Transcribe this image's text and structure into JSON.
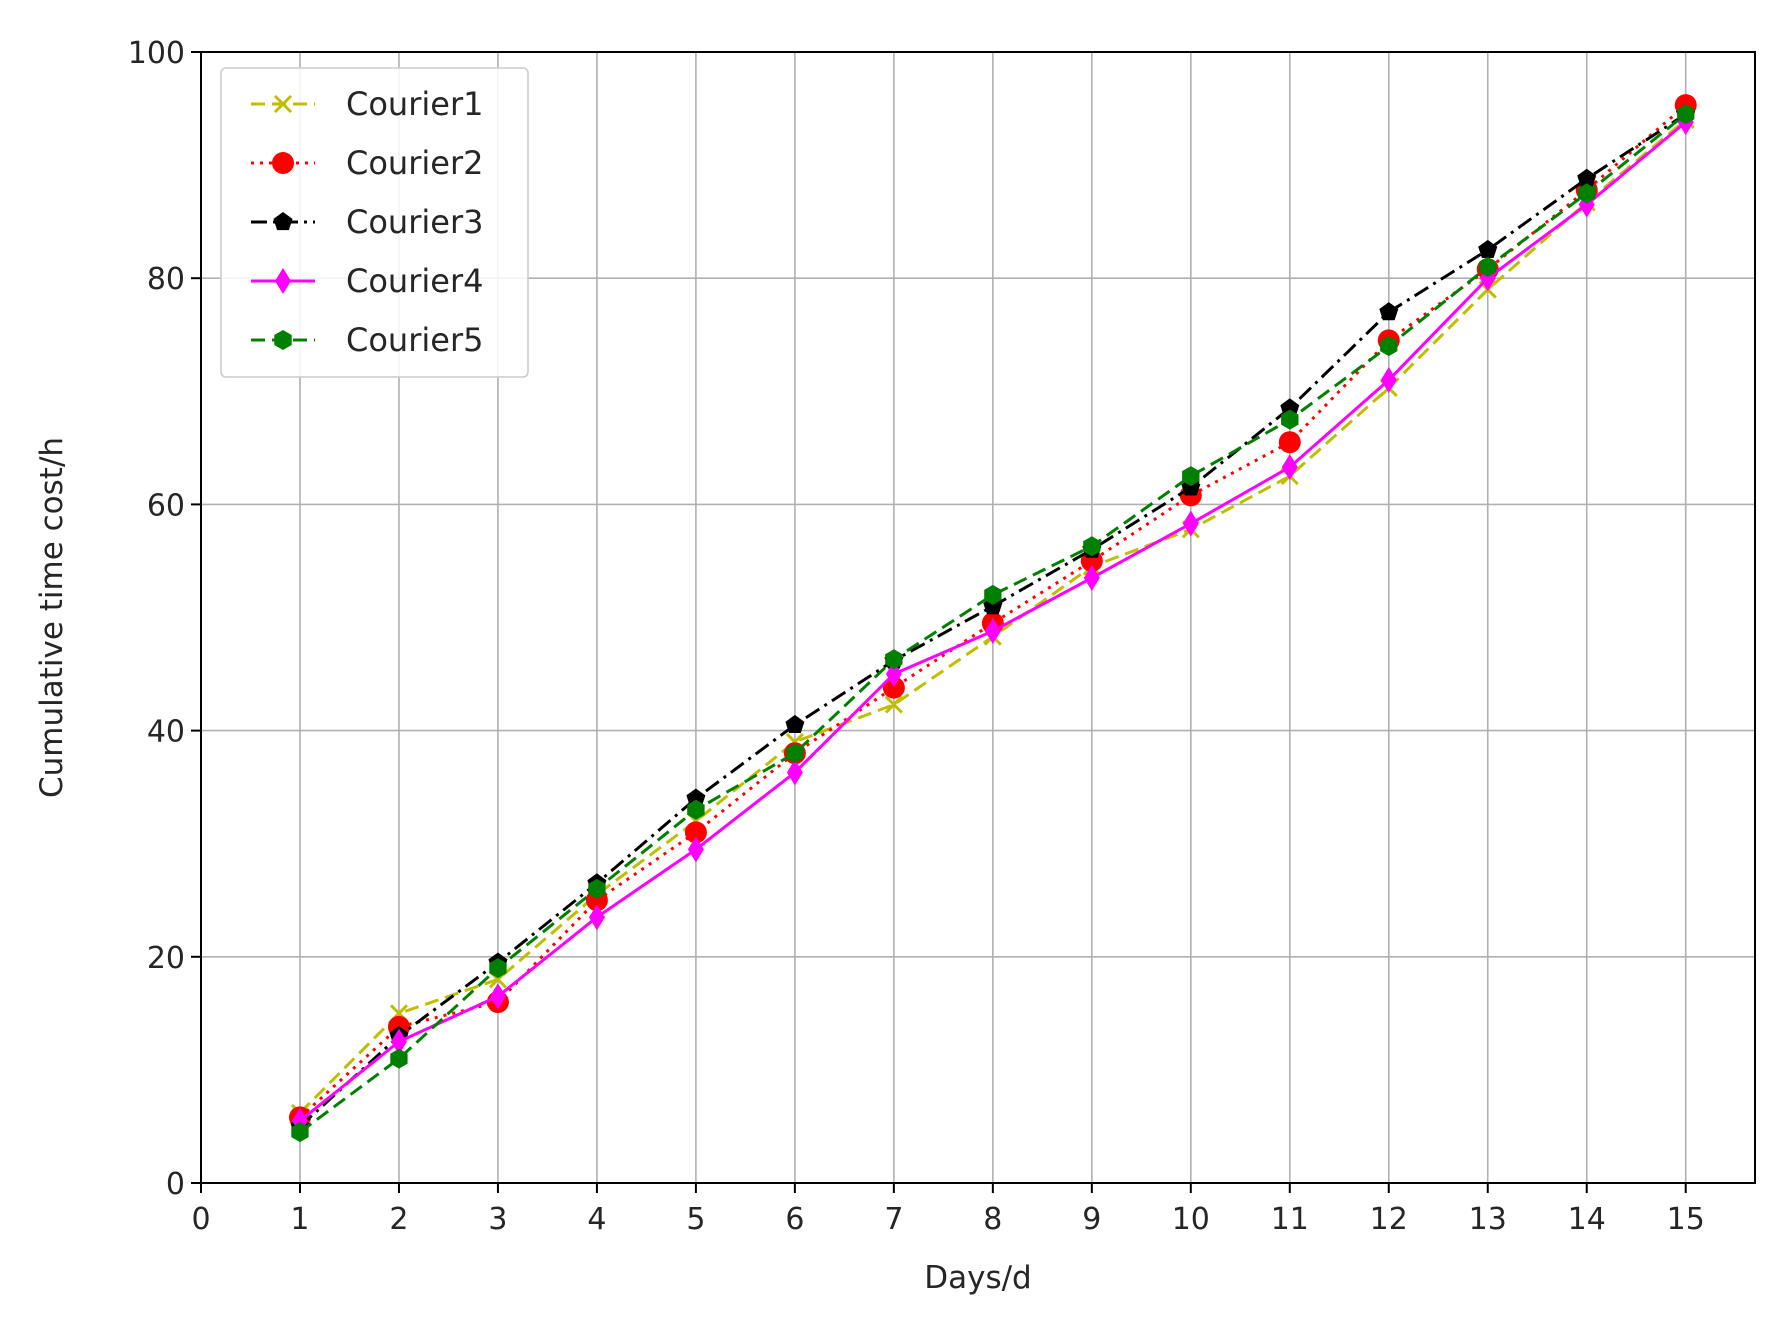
{
  "chart_data": {
    "type": "line",
    "title": "",
    "xlabel": "Days/d",
    "ylabel": "Cumulative time cost/h",
    "xlim": [
      0,
      15.7
    ],
    "ylim": [
      0,
      100
    ],
    "x": [
      1,
      2,
      3,
      4,
      5,
      6,
      7,
      8,
      9,
      10,
      11,
      12,
      13,
      14,
      15
    ],
    "xticks": [
      "0",
      "1",
      "2",
      "3",
      "4",
      "5",
      "6",
      "7",
      "8",
      "9",
      "10",
      "11",
      "12",
      "13",
      "14",
      "15"
    ],
    "yticks": [
      "0",
      "20",
      "40",
      "60",
      "80",
      "100"
    ],
    "grid": true,
    "legend_position": "top-left",
    "series": [
      {
        "name": "Courier1",
        "color": "#bfbf00",
        "linestyle": "dashed",
        "marker": "x",
        "values": [
          6.2,
          15.0,
          18.0,
          25.5,
          32.0,
          39.0,
          42.3,
          48.3,
          54.5,
          57.8,
          62.5,
          70.3,
          79.0,
          86.7,
          94.0
        ]
      },
      {
        "name": "Courier2",
        "color": "#ff0000",
        "linestyle": "dotted",
        "marker": "circle",
        "values": [
          5.8,
          13.8,
          16.0,
          25.0,
          31.0,
          38.0,
          43.8,
          49.5,
          55.0,
          60.8,
          65.5,
          74.5,
          80.8,
          87.8,
          95.3
        ]
      },
      {
        "name": "Courier3",
        "color": "#000000",
        "linestyle": "dashdot",
        "marker": "pentagon",
        "values": [
          5.0,
          13.0,
          19.5,
          26.5,
          34.0,
          40.5,
          46.2,
          51.0,
          56.0,
          61.5,
          68.5,
          77.0,
          82.5,
          88.8,
          94.5
        ]
      },
      {
        "name": "Courier4",
        "color": "#ff00ff",
        "linestyle": "solid",
        "marker": "thin_diamond",
        "values": [
          5.5,
          12.5,
          16.5,
          23.5,
          29.5,
          36.3,
          45.0,
          48.8,
          53.5,
          58.3,
          63.3,
          71.0,
          80.0,
          86.5,
          93.8
        ]
      },
      {
        "name": "Courier5",
        "color": "#008000",
        "linestyle": "dashed",
        "marker": "hexagon",
        "values": [
          4.5,
          11.0,
          19.0,
          26.0,
          33.0,
          38.0,
          46.3,
          52.0,
          56.3,
          62.5,
          67.5,
          74.0,
          81.0,
          87.5,
          94.5
        ]
      }
    ]
  }
}
